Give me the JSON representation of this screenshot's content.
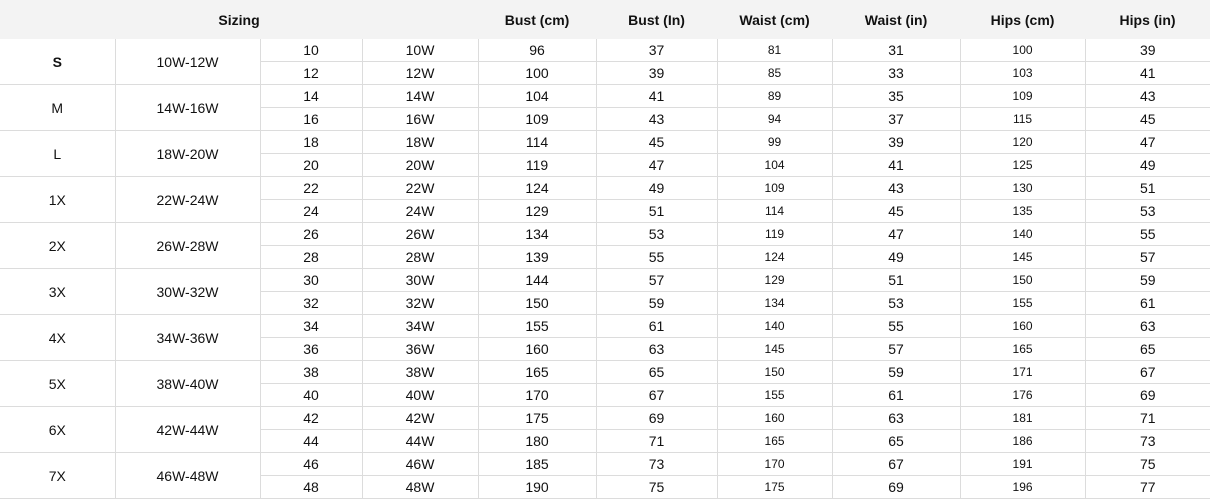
{
  "table": {
    "header": [
      "Sizing",
      "Bust (cm)",
      "Bust (In)",
      "Waist (cm)",
      "Waist (in)",
      "Hips (cm)",
      "Hips (in)"
    ],
    "groups": [
      {
        "size": "S",
        "range": "10W-12W",
        "rows": [
          [
            10,
            "10W",
            96,
            37,
            81,
            31,
            100,
            39
          ],
          [
            12,
            "12W",
            100,
            39,
            85,
            33,
            103,
            41
          ]
        ]
      },
      {
        "size": "M",
        "range": "14W-16W",
        "rows": [
          [
            14,
            "14W",
            104,
            41,
            89,
            35,
            109,
            43
          ],
          [
            16,
            "16W",
            109,
            43,
            94,
            37,
            115,
            45
          ]
        ]
      },
      {
        "size": "L",
        "range": "18W-20W",
        "rows": [
          [
            18,
            "18W",
            114,
            45,
            99,
            39,
            120,
            47
          ],
          [
            20,
            "20W",
            119,
            47,
            104,
            41,
            125,
            49
          ]
        ]
      },
      {
        "size": "1X",
        "range": "22W-24W",
        "rows": [
          [
            22,
            "22W",
            124,
            49,
            109,
            43,
            130,
            51
          ],
          [
            24,
            "24W",
            129,
            51,
            114,
            45,
            135,
            53
          ]
        ]
      },
      {
        "size": "2X",
        "range": "26W-28W",
        "rows": [
          [
            26,
            "26W",
            134,
            53,
            119,
            47,
            140,
            55
          ],
          [
            28,
            "28W",
            139,
            55,
            124,
            49,
            145,
            57
          ]
        ]
      },
      {
        "size": "3X",
        "range": "30W-32W",
        "rows": [
          [
            30,
            "30W",
            144,
            57,
            129,
            51,
            150,
            59
          ],
          [
            32,
            "32W",
            150,
            59,
            134,
            53,
            155,
            61
          ]
        ]
      },
      {
        "size": "4X",
        "range": "34W-36W",
        "rows": [
          [
            34,
            "34W",
            155,
            61,
            140,
            55,
            160,
            63
          ],
          [
            36,
            "36W",
            160,
            63,
            145,
            57,
            165,
            65
          ]
        ]
      },
      {
        "size": "5X",
        "range": "38W-40W",
        "rows": [
          [
            38,
            "38W",
            165,
            65,
            150,
            59,
            171,
            67
          ],
          [
            40,
            "40W",
            170,
            67,
            155,
            61,
            176,
            69
          ]
        ]
      },
      {
        "size": "6X",
        "range": "42W-44W",
        "rows": [
          [
            42,
            "42W",
            175,
            69,
            160,
            63,
            181,
            71
          ],
          [
            44,
            "44W",
            180,
            71,
            165,
            65,
            186,
            73
          ]
        ]
      },
      {
        "size": "7X",
        "range": "46W-48W",
        "rows": [
          [
            46,
            "46W",
            185,
            73,
            170,
            67,
            191,
            75
          ],
          [
            48,
            "48W",
            190,
            75,
            175,
            69,
            196,
            77
          ]
        ]
      }
    ]
  }
}
